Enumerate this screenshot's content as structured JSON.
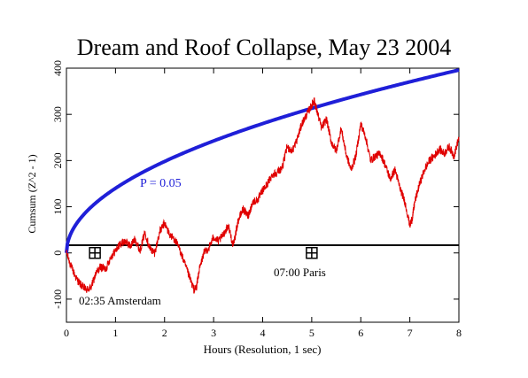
{
  "chart_data": {
    "type": "line",
    "title": "Dream and Roof Collapse, May 23 2004",
    "xlabel": "Hours (Resolution, 1 sec)",
    "ylabel": "Cumsum (Z^2 - 1)",
    "xlim": [
      0,
      8
    ],
    "ylim": [
      -150,
      400
    ],
    "xticks": [
      0,
      1,
      2,
      3,
      4,
      5,
      6,
      7,
      8
    ],
    "yticks": [
      -100,
      0,
      100,
      200,
      300,
      400
    ],
    "grid": false,
    "series": [
      {
        "name": "P = 0.05",
        "color": "#1f1fd8",
        "style": "sqrt-curve",
        "coef": 140.0
      },
      {
        "name": "Cumsum",
        "color": "#e00000",
        "style": "noisy",
        "x": [
          0,
          0.1,
          0.2,
          0.3,
          0.4,
          0.5,
          0.6,
          0.7,
          0.8,
          0.9,
          1.0,
          1.1,
          1.2,
          1.3,
          1.4,
          1.5,
          1.6,
          1.7,
          1.8,
          1.9,
          2.0,
          2.1,
          2.2,
          2.3,
          2.4,
          2.5,
          2.6,
          2.65,
          2.7,
          2.8,
          2.9,
          3.0,
          3.1,
          3.2,
          3.3,
          3.4,
          3.5,
          3.6,
          3.7,
          3.8,
          3.9,
          4.0,
          4.1,
          4.2,
          4.3,
          4.4,
          4.5,
          4.6,
          4.7,
          4.8,
          4.9,
          5.0,
          5.05,
          5.1,
          5.2,
          5.3,
          5.4,
          5.5,
          5.6,
          5.7,
          5.8,
          5.9,
          6.0,
          6.1,
          6.2,
          6.3,
          6.4,
          6.5,
          6.6,
          6.7,
          6.8,
          6.9,
          7.0,
          7.05,
          7.1,
          7.2,
          7.3,
          7.4,
          7.5,
          7.6,
          7.7,
          7.8,
          7.9,
          8.0
        ],
        "y": [
          0,
          -30,
          -55,
          -70,
          -80,
          -75,
          -45,
          -30,
          -35,
          -10,
          5,
          20,
          25,
          15,
          30,
          5,
          45,
          10,
          0,
          45,
          65,
          40,
          30,
          10,
          -20,
          -50,
          -80,
          -75,
          -40,
          0,
          10,
          35,
          25,
          40,
          60,
          15,
          70,
          95,
          80,
          110,
          115,
          135,
          150,
          170,
          175,
          185,
          230,
          220,
          245,
          280,
          300,
          320,
          330,
          310,
          270,
          290,
          240,
          220,
          270,
          215,
          180,
          210,
          280,
          250,
          200,
          210,
          215,
          190,
          160,
          180,
          140,
          110,
          60,
          75,
          110,
          150,
          180,
          200,
          210,
          225,
          215,
          230,
          210,
          250
        ]
      }
    ],
    "markers": [
      {
        "x": 0.58,
        "y": 0,
        "label": "02:35 Amsterdam"
      },
      {
        "x": 5.0,
        "y": 0,
        "label": "07:00 Paris"
      }
    ],
    "annotation_label": "P = 0.05"
  }
}
